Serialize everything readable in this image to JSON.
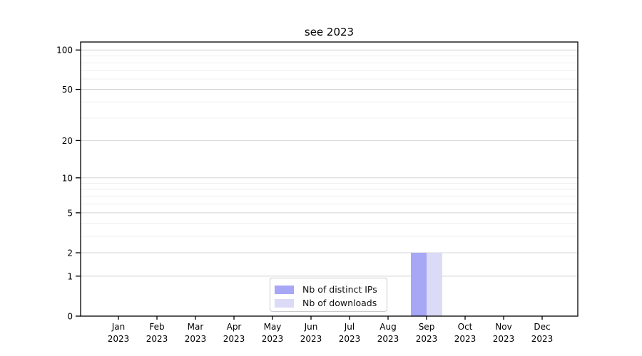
{
  "chart_data": {
    "type": "bar",
    "title": "see 2023",
    "categories": [
      "Jan",
      "Feb",
      "Mar",
      "Apr",
      "May",
      "Jun",
      "Jul",
      "Aug",
      "Sep",
      "Oct",
      "Nov",
      "Dec"
    ],
    "category_year_line": "2023",
    "series": [
      {
        "name": "Nb of distinct IPs",
        "color": "#a7a7f6",
        "values": [
          0,
          0,
          0,
          0,
          0,
          0,
          0,
          0,
          2,
          0,
          0,
          0
        ]
      },
      {
        "name": "Nb of downloads",
        "color": "#dbdbf8",
        "values": [
          0,
          0,
          0,
          0,
          0,
          0,
          0,
          0,
          2,
          0,
          0,
          0
        ]
      }
    ],
    "xlabel": "",
    "ylabel": "",
    "yscale": "log1p",
    "ylim": [
      0,
      115
    ],
    "yticks": [
      0,
      1,
      2,
      5,
      10,
      20,
      50,
      100
    ],
    "yticks_minor": [
      3,
      4,
      6,
      7,
      8,
      9,
      30,
      40,
      60,
      70,
      80,
      90
    ],
    "grid": "horizontal",
    "legend_position": "bottom-center-inside",
    "colors": {
      "spine": "#000000",
      "grid_major": "#d4d4d4",
      "grid_minor": "#efefef",
      "legend_border": "#c9c9c9",
      "background": "#ffffff"
    }
  }
}
